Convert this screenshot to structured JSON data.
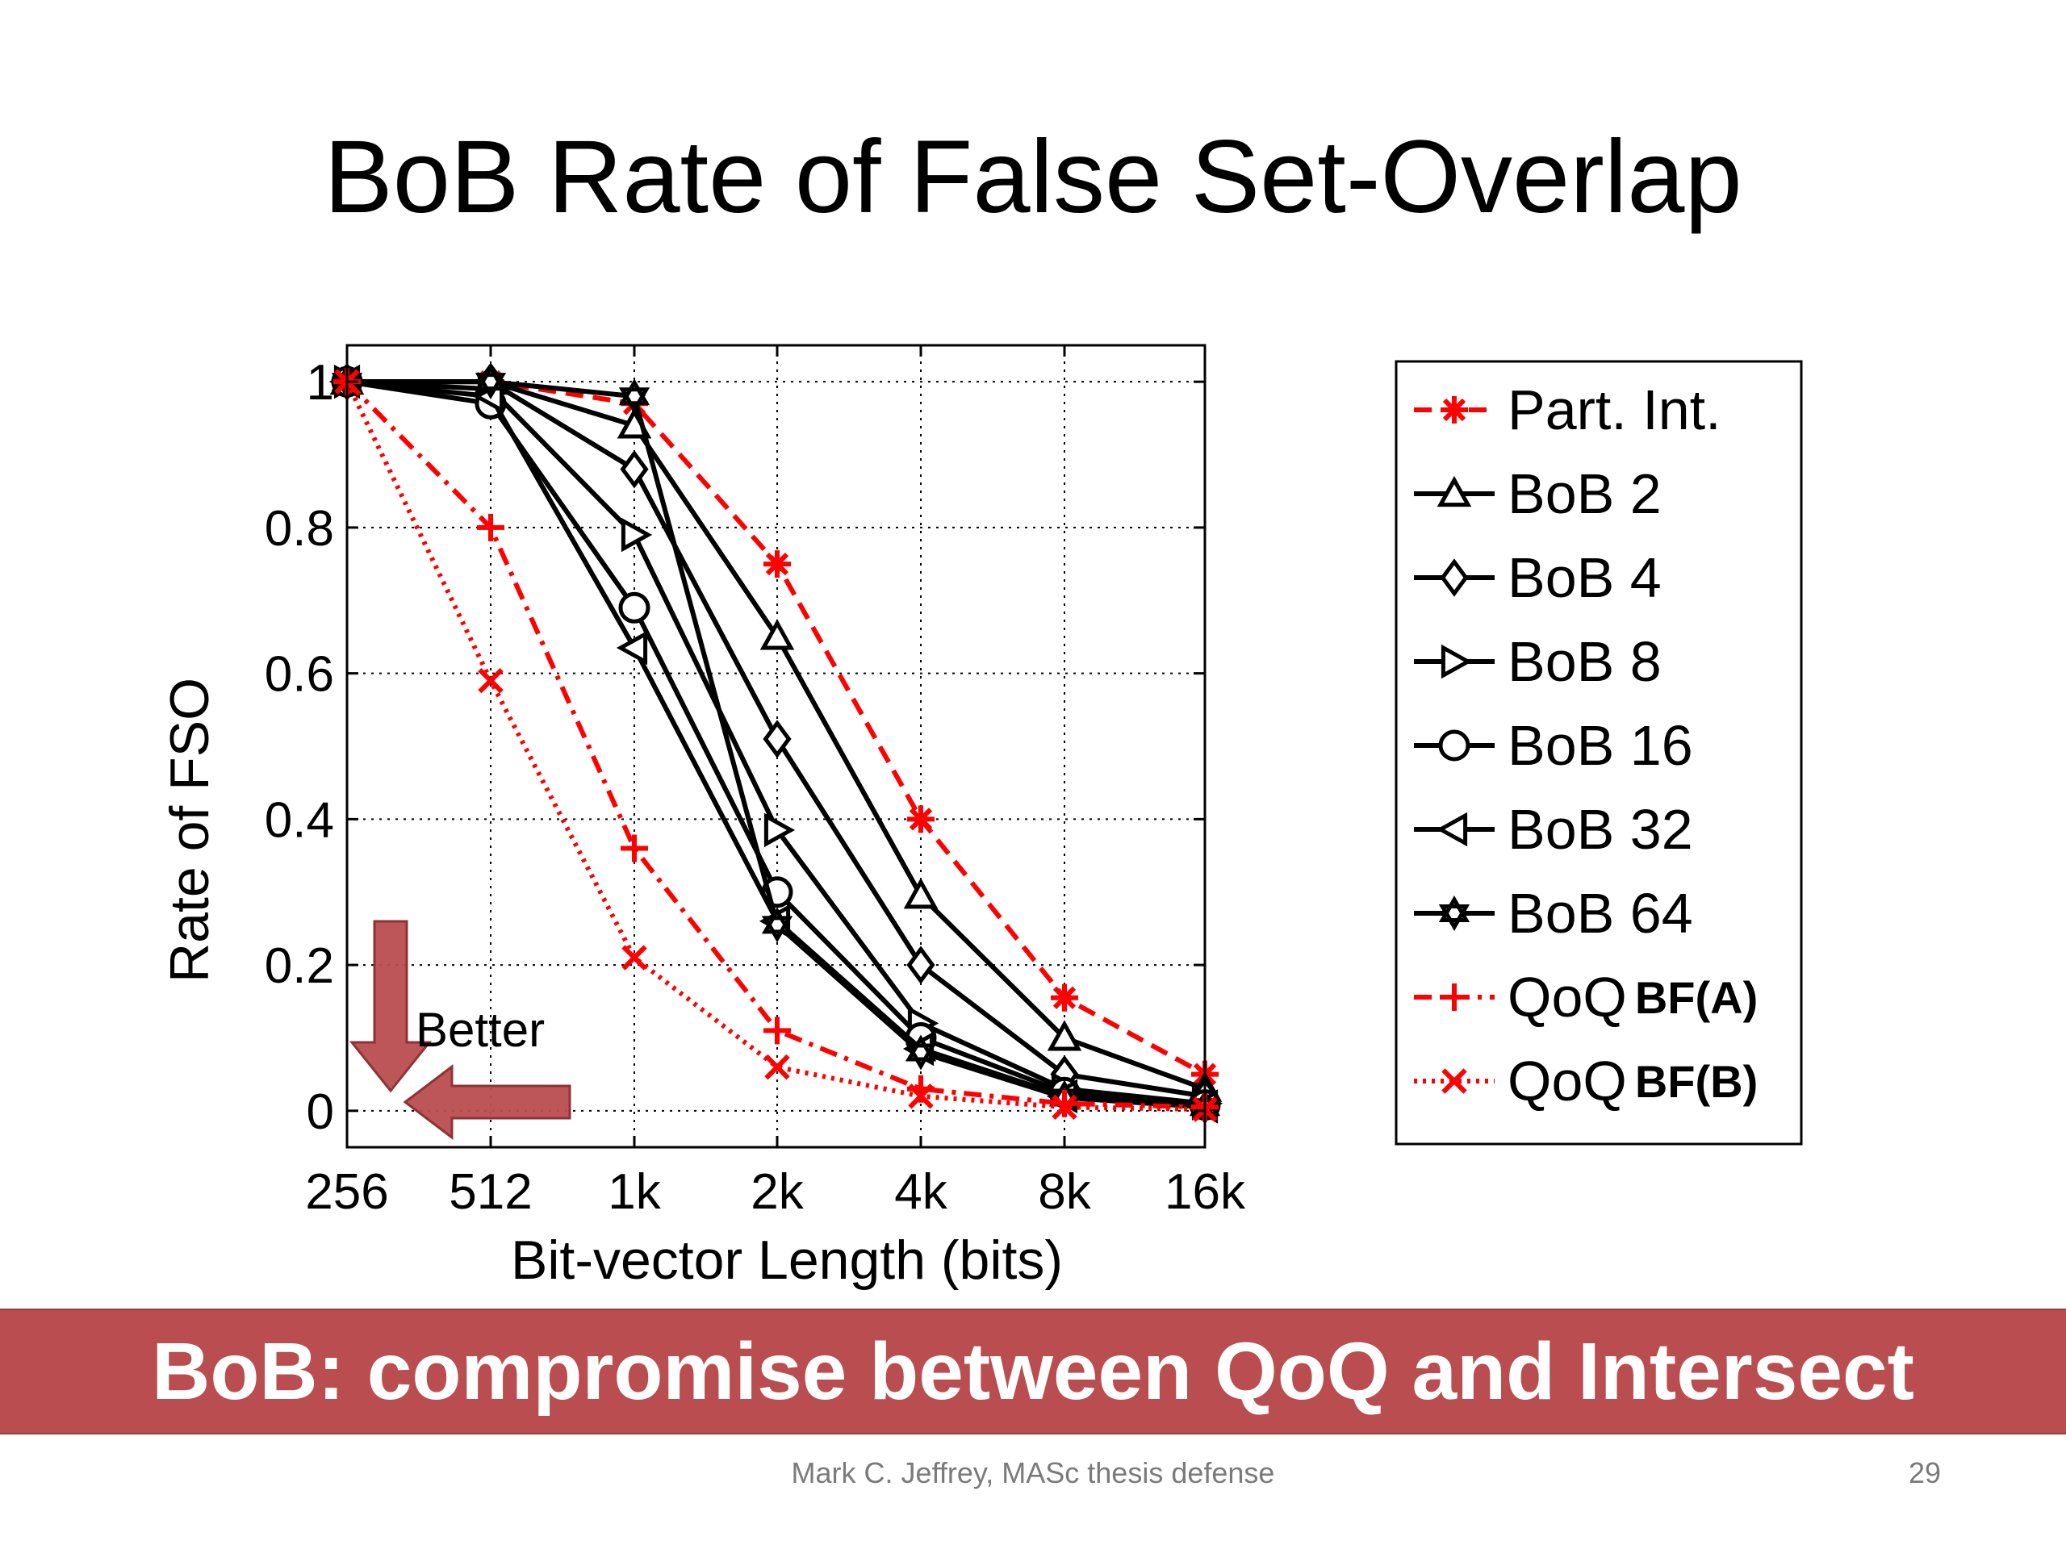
{
  "slide": {
    "title": "BoB Rate of False Set-Overlap",
    "banner": "BoB: compromise between QoQ and Intersect",
    "footer": "Mark C. Jeffrey, MASc thesis defense",
    "page_number": "29",
    "annotation": "Better",
    "colors": {
      "banner": "#b94d4f",
      "arrow": "#b94d4f",
      "red_series": "#ff0000",
      "black_series": "#000000"
    }
  },
  "chart_data": {
    "type": "line",
    "xlabel": "Bit-vector Length (bits)",
    "ylabel": "Rate of FSO",
    "categories": [
      "256",
      "512",
      "1k",
      "2k",
      "4k",
      "8k",
      "16k"
    ],
    "ylim": [
      -0.05,
      1.05
    ],
    "yticks": [
      0,
      0.2,
      0.4,
      0.6,
      0.8,
      1
    ],
    "ytick_labels": [
      "0",
      "0.2",
      "0.4",
      "0.6",
      "0.8",
      "1"
    ],
    "grid": true,
    "legend_position": "outside-right",
    "series": [
      {
        "name": "Part. Int.",
        "marker": "asterisk",
        "color": "#ff0000",
        "dash": "dashed",
        "values": [
          1.0,
          1.0,
          0.97,
          0.75,
          0.4,
          0.155,
          0.05
        ]
      },
      {
        "name": "BoB 2",
        "marker": "triangle-up",
        "color": "#000000",
        "dash": "solid",
        "values": [
          1.0,
          1.0,
          0.94,
          0.65,
          0.295,
          0.1,
          0.03
        ]
      },
      {
        "name": "BoB 4",
        "marker": "diamond",
        "color": "#000000",
        "dash": "solid",
        "values": [
          1.0,
          1.0,
          0.88,
          0.51,
          0.2,
          0.05,
          0.02
        ]
      },
      {
        "name": "BoB 8",
        "marker": "triangle-right",
        "color": "#000000",
        "dash": "solid",
        "values": [
          1.0,
          0.99,
          0.79,
          0.385,
          0.12,
          0.03,
          0.01
        ]
      },
      {
        "name": "BoB 16",
        "marker": "circle",
        "color": "#000000",
        "dash": "solid",
        "values": [
          1.0,
          0.97,
          0.69,
          0.3,
          0.1,
          0.025,
          0.008
        ]
      },
      {
        "name": "BoB 32",
        "marker": "triangle-left",
        "color": "#000000",
        "dash": "solid",
        "values": [
          1.0,
          0.98,
          0.635,
          0.26,
          0.085,
          0.02,
          0.006
        ]
      },
      {
        "name": "BoB 64",
        "marker": "hexagram",
        "color": "#000000",
        "dash": "solid",
        "values": [
          1.0,
          1.0,
          0.98,
          0.255,
          0.08,
          0.018,
          0.005
        ]
      },
      {
        "name": "QoQ",
        "name_suffix": "BF(A)",
        "marker": "plus",
        "color": "#ff0000",
        "dash": "dashdot",
        "values": [
          1.0,
          0.8,
          0.36,
          0.11,
          0.03,
          0.01,
          0.005
        ]
      },
      {
        "name": "QoQ",
        "name_suffix": "BF(B)",
        "marker": "x",
        "color": "#ff0000",
        "dash": "dotted",
        "values": [
          1.0,
          0.59,
          0.21,
          0.06,
          0.02,
          0.005,
          0.002
        ]
      }
    ]
  }
}
